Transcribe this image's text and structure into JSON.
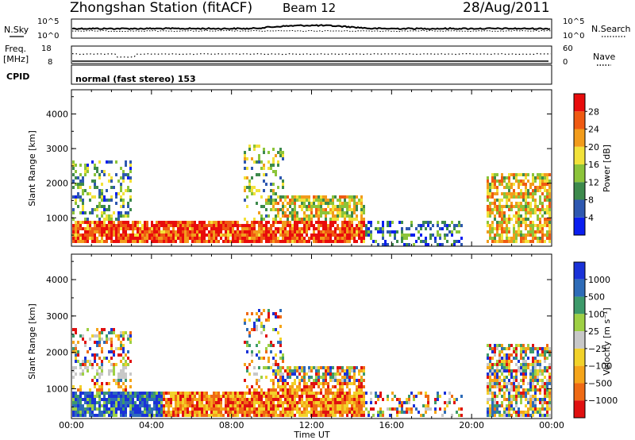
{
  "header": {
    "station": "Zhongshan Station (fitACF)",
    "beam": "Beam 12",
    "date": "28/Aug/2011"
  },
  "panels": {
    "nsky_label": "N.Sky",
    "nsearch_label": "N.Search",
    "nsky_ticks": [
      "10^5",
      "10^0"
    ],
    "nsearch_ticks": [
      "10^5",
      "10^0"
    ],
    "freq_label_1": "Freq.",
    "freq_label_2": "[MHz]",
    "freq_ticks": [
      "18",
      "8"
    ],
    "nave_label": "Nave",
    "nave_ticks": [
      "60",
      "0"
    ],
    "cpid_label": "CPID",
    "cpid_value": "normal (fast stereo) 153"
  },
  "chart_data": [
    {
      "type": "heatmap",
      "name": "power",
      "xlabel": "",
      "ylabel": "Slant Range [km]",
      "x_ticks": [
        "00:00",
        "04:00",
        "08:00",
        "12:00",
        "16:00",
        "20:00",
        "00:00"
      ],
      "x_range_hours": [
        0,
        24
      ],
      "y_ticks": [
        "1000",
        "2000",
        "3000",
        "4000"
      ],
      "y_range_km": [
        180,
        4700
      ],
      "colorbar": {
        "label": "Power [dB]",
        "ticks": [
          "4",
          "8",
          "12",
          "16",
          "20",
          "24",
          "28"
        ],
        "range": [
          0,
          32
        ],
        "colors": [
          "#0a1ef0",
          "#2e58b0",
          "#3d8a4c",
          "#8cc43a",
          "#f2e23a",
          "#f29c1c",
          "#ef5a12",
          "#e80c0c"
        ]
      },
      "echo_regions": [
        {
          "t": [
            0.0,
            14.6
          ],
          "r": [
            300,
            1000
          ],
          "desc": "strong"
        },
        {
          "t": [
            0.0,
            3.0
          ],
          "r": [
            1000,
            2700
          ],
          "desc": "patchy"
        },
        {
          "t": [
            8.5,
            10.6
          ],
          "r": [
            1000,
            3200
          ],
          "desc": "patchy"
        },
        {
          "t": [
            10.0,
            14.6
          ],
          "r": [
            400,
            1700
          ],
          "desc": "medium"
        },
        {
          "t": [
            14.6,
            19.5
          ],
          "r": [
            250,
            1000
          ],
          "desc": "weak"
        },
        {
          "t": [
            20.7,
            24.0
          ],
          "r": [
            300,
            2300
          ],
          "desc": "medium"
        }
      ]
    },
    {
      "type": "heatmap",
      "name": "velocity",
      "xlabel": "Time UT",
      "ylabel": "Slant Range [km]",
      "x_ticks": [
        "00:00",
        "04:00",
        "08:00",
        "12:00",
        "16:00",
        "20:00",
        "00:00"
      ],
      "x_range_hours": [
        0,
        24
      ],
      "y_ticks": [
        "1000",
        "2000",
        "3000",
        "4000"
      ],
      "y_range_km": [
        180,
        4700
      ],
      "colorbar": {
        "label": "Velocity [m s⁻¹]",
        "ticks": [
          "1000",
          "500",
          "100",
          "25",
          "−25",
          "−100",
          "−500",
          "−1000"
        ],
        "colors": [
          "#1a32d8",
          "#2e6cb8",
          "#3d9a6a",
          "#9ed044",
          "#c8c8c8",
          "#f2d22a",
          "#f5a51a",
          "#ef6a14",
          "#e01010"
        ]
      },
      "echo_regions": [
        {
          "t": [
            0.0,
            4.5
          ],
          "r": [
            300,
            1000
          ],
          "v": "positive (blue)"
        },
        {
          "t": [
            4.5,
            14.6
          ],
          "r": [
            300,
            1200
          ],
          "v": "negative (orange)"
        },
        {
          "t": [
            0.0,
            3.0
          ],
          "r": [
            1300,
            1700
          ],
          "v": "near zero (grey)"
        },
        {
          "t": [
            20.7,
            24.0
          ],
          "r": [
            300,
            2300
          ],
          "v": "mixed"
        }
      ]
    }
  ]
}
